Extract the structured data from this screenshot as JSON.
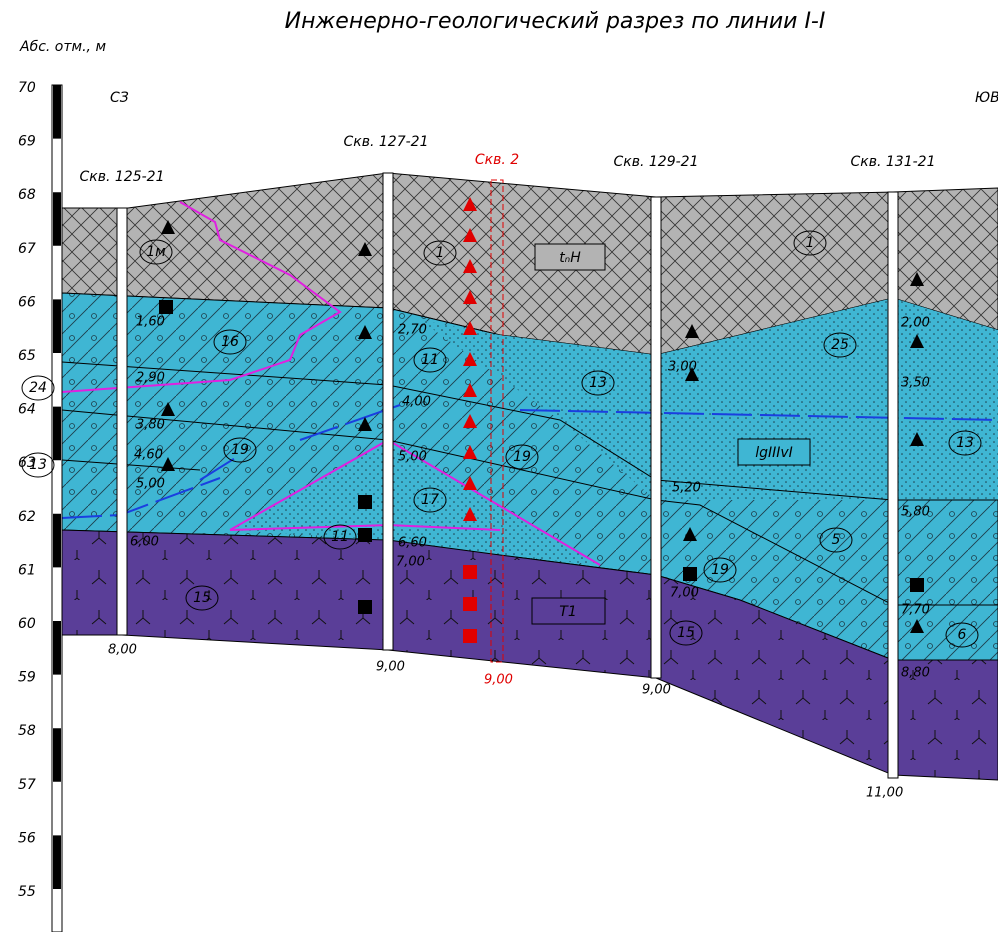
{
  "title": "Инженерно-геологический разрез по линии I-I",
  "axis": {
    "label": "Абс. отм., м",
    "ticks": [
      "70",
      "69",
      "68",
      "67",
      "66",
      "65",
      "64",
      "63",
      "62",
      "61",
      "60",
      "59",
      "58",
      "57",
      "56",
      "55"
    ]
  },
  "directions": {
    "left": "СЗ",
    "right": "ЮВ"
  },
  "boreholes": [
    {
      "name": "Скв. 125-21",
      "depths": [
        "1,60",
        "2,90",
        "3,80",
        "4,60",
        "5,00",
        "6,00",
        "8,00"
      ]
    },
    {
      "name": "Скв. 127-21",
      "depths": [
        "2,70",
        "4,00",
        "5,00",
        "6,60",
        "7,00",
        "9,00"
      ]
    },
    {
      "name": "Скв. 2",
      "depths": [
        "9,00"
      ]
    },
    {
      "name": "Скв. 129-21",
      "depths": [
        "3,00",
        "5,20",
        "7,00",
        "9,00"
      ]
    },
    {
      "name": "Скв. 131-21",
      "depths": [
        "2,00",
        "3,50",
        "5,80",
        "7,70",
        "8,80",
        "11,00"
      ]
    }
  ],
  "layer_labels": [
    "1м",
    "16",
    "24",
    "13",
    "19",
    "17",
    "11",
    "1",
    "11",
    "19",
    "13",
    "1",
    "25",
    "13",
    "5",
    "19",
    "15",
    "6",
    "15"
  ],
  "formation_labels": [
    "tₙН",
    "lgIIIvI",
    "T1"
  ]
}
